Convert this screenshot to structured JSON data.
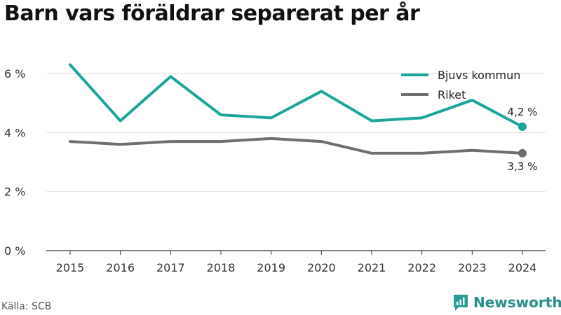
{
  "title": "Barn vars föräldrar separerat per år",
  "source": "Källa: SCB",
  "brand": {
    "name": "Newsworthy",
    "icon": "newsworthy-logo-icon",
    "color": "#2a9d97"
  },
  "colors": {
    "bjuv": "#1aa59a",
    "riket": "#6e6e73",
    "grid": "#dddddd"
  },
  "chart_data": {
    "type": "line",
    "title": "Barn vars föräldrar separerat per år",
    "xlabel": "",
    "ylabel": "",
    "x": [
      "2015",
      "2016",
      "2017",
      "2018",
      "2019",
      "2020",
      "2021",
      "2022",
      "2023",
      "2024"
    ],
    "ylim": [
      0,
      7
    ],
    "yticks": [
      0,
      2,
      4,
      6
    ],
    "ytick_labels": [
      "0 %",
      "2 %",
      "4 %",
      "6 %"
    ],
    "grid": true,
    "legend_position": "top-right",
    "series": [
      {
        "name": "Bjuvs kommun",
        "values": [
          6.3,
          4.4,
          5.9,
          4.6,
          4.5,
          5.4,
          4.4,
          4.5,
          5.1,
          4.2
        ],
        "end_label": "4,2 %"
      },
      {
        "name": "Riket",
        "values": [
          3.7,
          3.6,
          3.7,
          3.7,
          3.8,
          3.7,
          3.3,
          3.3,
          3.4,
          3.3
        ],
        "end_label": "3,3 %"
      }
    ]
  }
}
